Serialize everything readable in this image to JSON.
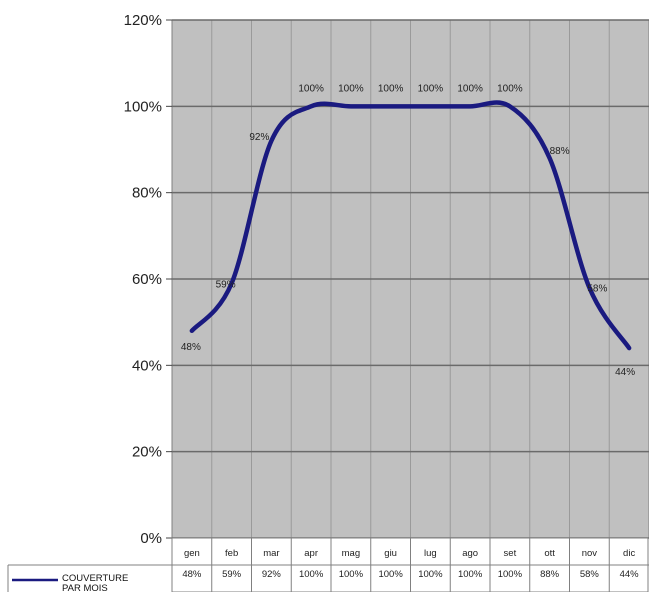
{
  "chart_data": {
    "type": "line",
    "categories": [
      "gen",
      "feb",
      "mar",
      "apr",
      "mag",
      "giu",
      "lug",
      "ago",
      "set",
      "ott",
      "nov",
      "dic"
    ],
    "series": [
      {
        "name": "COUVERTURE PAR MOIS",
        "values": [
          48,
          59,
          92,
          100,
          100,
          100,
          100,
          100,
          100,
          88,
          58,
          44
        ],
        "labels": [
          "48%",
          "59%",
          "92%",
          "100%",
          "100%",
          "100%",
          "100%",
          "100%",
          "100%",
          "88%",
          "58%",
          "44%"
        ],
        "color": "#1a1a80"
      }
    ],
    "yticks": [
      "0%",
      "20%",
      "40%",
      "60%",
      "80%",
      "100%",
      "120%"
    ],
    "ylim": [
      0,
      120
    ],
    "grid": true,
    "plot_background": "#c0c0c0",
    "legend_position": "bottom-left",
    "data_table": true
  }
}
